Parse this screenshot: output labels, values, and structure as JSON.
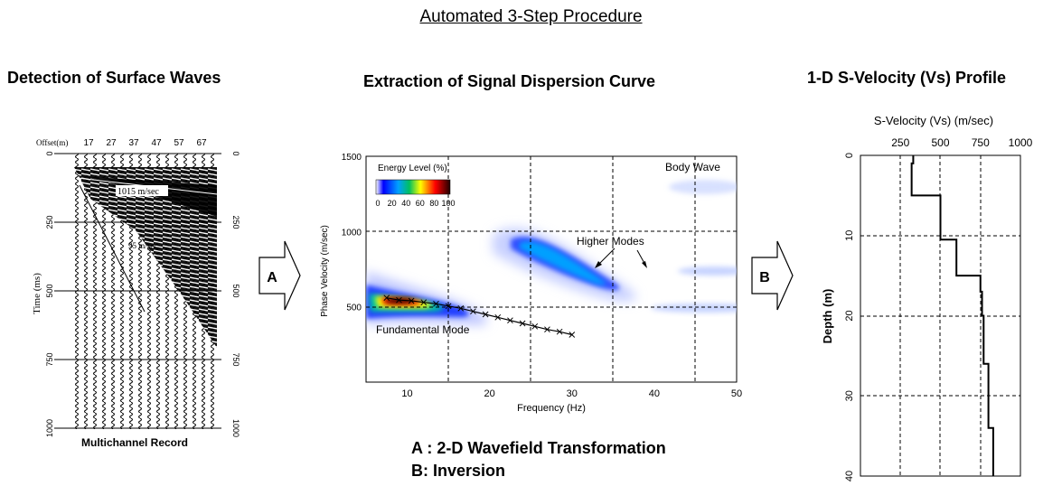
{
  "title": "Automated 3-Step Procedure",
  "sections": {
    "detection": "Detection of Surface Waves",
    "extraction": "Extraction of Signal Dispersion Curve",
    "profile": "1-D S-Velocity (Vs) Profile"
  },
  "record": {
    "offset_label": "Offset(m)",
    "offset_ticks": [
      "17",
      "27",
      "37",
      "47",
      "57",
      "67"
    ],
    "time_label": "Time (ms)",
    "time_ticks_left": [
      "0",
      "250",
      "500",
      "750",
      "1000"
    ],
    "time_ticks_right": [
      "0",
      "250",
      "500",
      "750",
      "1000"
    ],
    "velocity_annotation_1": "1015 m/sec",
    "velocity_annotation_2": "95 m/sec",
    "caption": "Multichannel Record"
  },
  "arrows": {
    "a": "A",
    "b": "B"
  },
  "dispersion": {
    "xlabel": "Frequency (Hz)",
    "ylabel": "Phase Velocity (m/sec)",
    "x_ticks": [
      "10",
      "20",
      "30",
      "40",
      "50"
    ],
    "y_ticks": [
      "500",
      "1000",
      "1500"
    ],
    "legend_title": "Energy Level (%)",
    "legend_ticks": [
      "0",
      "20",
      "40",
      "60",
      "80",
      "100"
    ],
    "label_body_wave": "Body Wave",
    "label_higher_modes": "Higher Modes",
    "label_fundamental": "Fundamental Mode",
    "curve": [
      [
        7.5,
        560
      ],
      [
        9,
        545
      ],
      [
        10.5,
        540
      ],
      [
        12,
        530
      ],
      [
        13.5,
        520
      ],
      [
        15,
        505
      ],
      [
        16.5,
        490
      ],
      [
        18,
        470
      ],
      [
        19.5,
        450
      ],
      [
        21,
        430
      ],
      [
        22.5,
        410
      ],
      [
        24,
        390
      ],
      [
        25.5,
        370
      ],
      [
        27,
        350
      ],
      [
        28.5,
        335
      ],
      [
        30,
        315
      ]
    ]
  },
  "footnotes": {
    "a": "A : 2-D Wavefield Transformation",
    "b": "B: Inversion"
  },
  "profile": {
    "xlabel": "S-Velocity (Vs) (m/sec)",
    "ylabel": "Depth (m)",
    "x_ticks": [
      "250",
      "500",
      "750",
      "1000"
    ],
    "y_ticks": [
      "0",
      "10",
      "20",
      "30",
      "40"
    ],
    "steps": [
      [
        330,
        0
      ],
      [
        330,
        1
      ],
      [
        320,
        1
      ],
      [
        320,
        5
      ],
      [
        500,
        5
      ],
      [
        500,
        10.5
      ],
      [
        600,
        10.5
      ],
      [
        600,
        15
      ],
      [
        750,
        15
      ],
      [
        750,
        17
      ],
      [
        760,
        17
      ],
      [
        760,
        20
      ],
      [
        770,
        20
      ],
      [
        770,
        26
      ],
      [
        800,
        26
      ],
      [
        800,
        34
      ],
      [
        830,
        34
      ],
      [
        830,
        40
      ]
    ]
  }
}
